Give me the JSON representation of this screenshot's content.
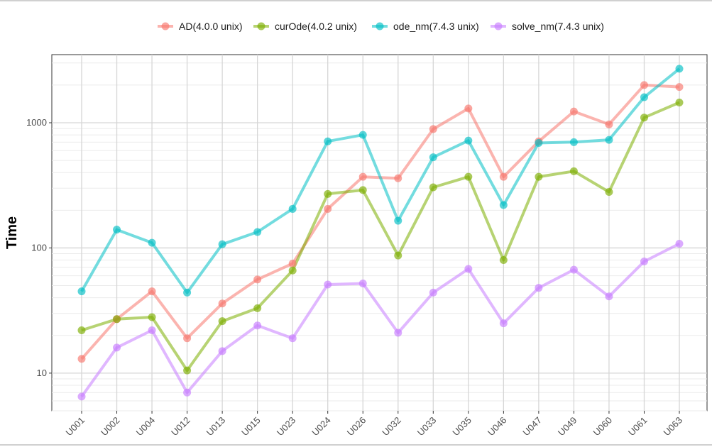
{
  "chart_data": {
    "type": "line",
    "ylabel": "Time",
    "xlabel": "",
    "y_scale": "log10",
    "ylim": [
      5,
      3500
    ],
    "y_ticks": [
      10,
      100,
      1000
    ],
    "y_tick_labels": [
      "10",
      "100",
      "1000"
    ],
    "grid": true,
    "legend_position": "top",
    "categories": [
      "U001",
      "U002",
      "U004",
      "U012",
      "U013",
      "U015",
      "U023",
      "U024",
      "U026",
      "U032",
      "U033",
      "U035",
      "U046",
      "U047",
      "U049",
      "U060",
      "U061",
      "U063"
    ],
    "series": [
      {
        "name": "AD(4.0.0 unix)",
        "color": "#f8766d",
        "values": [
          13,
          27,
          45,
          19,
          36,
          56,
          75,
          205,
          370,
          360,
          890,
          1300,
          370,
          710,
          1230,
          970,
          2000,
          1930
        ]
      },
      {
        "name": "curOde(4.0.2 unix)",
        "color": "#7cae00",
        "values": [
          22,
          27,
          28,
          10.5,
          26,
          33,
          66,
          270,
          290,
          87,
          305,
          370,
          80,
          370,
          410,
          280,
          1100,
          1450
        ]
      },
      {
        "name": "ode_nm(7.4.3 unix)",
        "color": "#00bfc4",
        "values": [
          45,
          140,
          110,
          44,
          107,
          134,
          205,
          710,
          800,
          165,
          530,
          720,
          220,
          690,
          700,
          730,
          1600,
          2700
        ]
      },
      {
        "name": "solve_nm(7.4.3 unix)",
        "color": "#c77cff",
        "values": [
          6.5,
          16,
          22,
          7,
          15,
          24,
          19,
          51,
          52,
          21,
          44,
          68,
          25,
          48,
          67,
          41,
          78,
          108
        ]
      }
    ]
  }
}
